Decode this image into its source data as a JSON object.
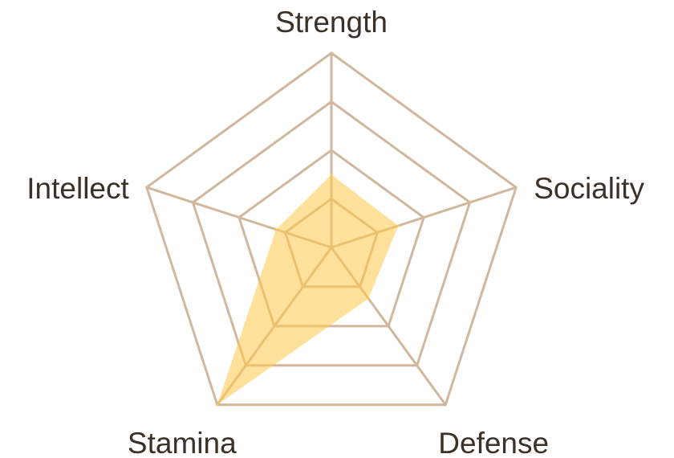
{
  "colors": {
    "grid": "#d2b79c",
    "area": "#ffc94a",
    "text": "#3a3128"
  },
  "chart_data": {
    "type": "radar",
    "axes": [
      "Strength",
      "Sociality",
      "Defense",
      "Stamina",
      "Intellect"
    ],
    "rlim": [
      0,
      4
    ],
    "rings": [
      1,
      2,
      3,
      4
    ],
    "series": [
      {
        "values": [
          1.5,
          1.45,
          1.3,
          4.0,
          1.2
        ]
      }
    ]
  }
}
